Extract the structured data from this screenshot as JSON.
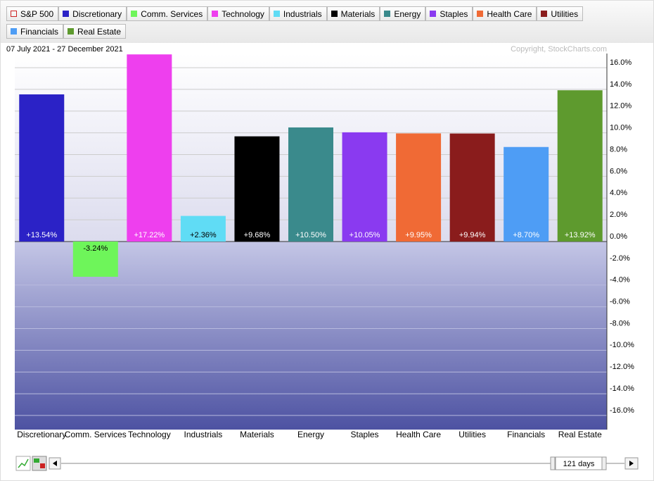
{
  "chart_data": {
    "type": "bar",
    "legend": [
      {
        "name": "S&P 500",
        "color": "#cc2222",
        "hollow": true
      },
      {
        "name": "Discretionary",
        "color": "#2b22c6"
      },
      {
        "name": "Comm. Services",
        "color": "#6ef55a"
      },
      {
        "name": "Technology",
        "color": "#ee3fee"
      },
      {
        "name": "Industrials",
        "color": "#60dcf5"
      },
      {
        "name": "Materials",
        "color": "#000000"
      },
      {
        "name": "Energy",
        "color": "#3a8a8c"
      },
      {
        "name": "Staples",
        "color": "#8a3af0"
      },
      {
        "name": "Health Care",
        "color": "#f06a35"
      },
      {
        "name": "Utilities",
        "color": "#8a1c1c"
      },
      {
        "name": "Financials",
        "color": "#4e9df5"
      },
      {
        "name": "Real Estate",
        "color": "#5e9a2e"
      }
    ],
    "subtitle": "07 July 2021 - 27 December 2021",
    "credit": "Copyright, StockCharts.com",
    "categories": [
      "Discretionary",
      "Comm. Services",
      "Technology",
      "Industrials",
      "Materials",
      "Energy",
      "Staples",
      "Health Care",
      "Utilities",
      "Financials",
      "Real Estate"
    ],
    "values": [
      13.54,
      -3.24,
      17.22,
      2.36,
      9.68,
      10.5,
      10.05,
      9.95,
      9.94,
      8.7,
      13.92
    ],
    "value_labels": [
      "+13.54%",
      "-3.24%",
      "+17.22%",
      "+2.36%",
      "+9.68%",
      "+10.50%",
      "+10.05%",
      "+9.95%",
      "+9.94%",
      "+8.70%",
      "+13.92%"
    ],
    "colors": [
      "#2b22c6",
      "#6ef55a",
      "#ee3fee",
      "#60dcf5",
      "#000000",
      "#3a8a8c",
      "#8a3af0",
      "#f06a35",
      "#8a1c1c",
      "#4e9df5",
      "#5e9a2e"
    ],
    "ylim": [
      -17.3,
      17.3
    ],
    "yticks": [
      {
        "value": -16,
        "label": "-16.0%"
      },
      {
        "value": -14,
        "label": "-14.0%"
      },
      {
        "value": -12,
        "label": "-12.0%"
      },
      {
        "value": -10,
        "label": "-10.0%"
      },
      {
        "value": -8,
        "label": "-8.0%"
      },
      {
        "value": -6,
        "label": "-6.0%"
      },
      {
        "value": -4,
        "label": "-4.0%"
      },
      {
        "value": -2,
        "label": "-2.0%"
      },
      {
        "value": 0,
        "label": "0.0%"
      },
      {
        "value": 2,
        "label": "2.0%"
      },
      {
        "value": 4,
        "label": "4.0%"
      },
      {
        "value": 6,
        "label": "6.0%"
      },
      {
        "value": 8,
        "label": "8.0%"
      },
      {
        "value": 10,
        "label": "10.0%"
      },
      {
        "value": 12,
        "label": "12.0%"
      },
      {
        "value": 14,
        "label": "14.0%"
      },
      {
        "value": 16,
        "label": "16.0%"
      }
    ],
    "grid": true,
    "period": "121 days"
  }
}
